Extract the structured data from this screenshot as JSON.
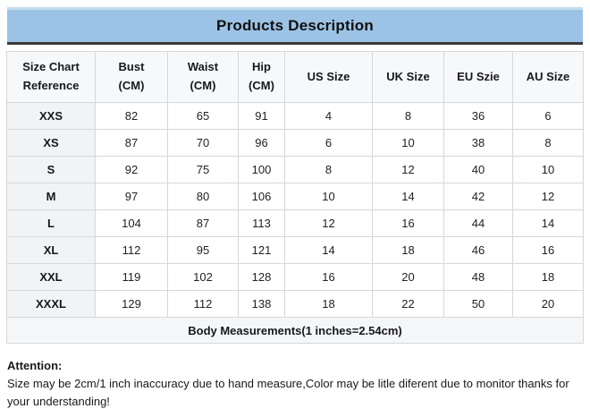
{
  "title": "Products Description",
  "table": {
    "columns": [
      "Size Chart\nReference",
      "Bust\n(CM)",
      "Waist\n(CM)",
      "Hip\n(CM)",
      "US Size",
      "UK Size",
      "EU Szie",
      "AU Size"
    ],
    "rows": [
      [
        "XXS",
        "82",
        "65",
        "91",
        "4",
        "8",
        "36",
        "6"
      ],
      [
        "XS",
        "87",
        "70",
        "96",
        "6",
        "10",
        "38",
        "8"
      ],
      [
        "S",
        "92",
        "75",
        "100",
        "8",
        "12",
        "40",
        "10"
      ],
      [
        "M",
        "97",
        "80",
        "106",
        "10",
        "14",
        "42",
        "12"
      ],
      [
        "L",
        "104",
        "87",
        "113",
        "12",
        "16",
        "44",
        "14"
      ],
      [
        "XL",
        "112",
        "95",
        "121",
        "14",
        "18",
        "46",
        "16"
      ],
      [
        "XXL",
        "119",
        "102",
        "128",
        "16",
        "20",
        "48",
        "18"
      ],
      [
        "XXXL",
        "129",
        "112",
        "138",
        "18",
        "22",
        "50",
        "20"
      ]
    ],
    "footer": "Body Measurements(1 inches=2.54cm)"
  },
  "attention": {
    "heading": "Attention:",
    "body": "Size may be 2cm/1 inch inaccuracy due to hand measure,Color may be litle diferent due to monitor thanks for your understanding!"
  },
  "colors": {
    "banner_bg": "#9cc3e5",
    "banner_top_edge": "#c4dcf0",
    "banner_underline": "#383838",
    "grid_line": "#d5d7da",
    "header_row_bg": "#f7f8fa",
    "label_col_bg": "#f2f3f5",
    "footer_row_bg": "#f5f6f8"
  }
}
